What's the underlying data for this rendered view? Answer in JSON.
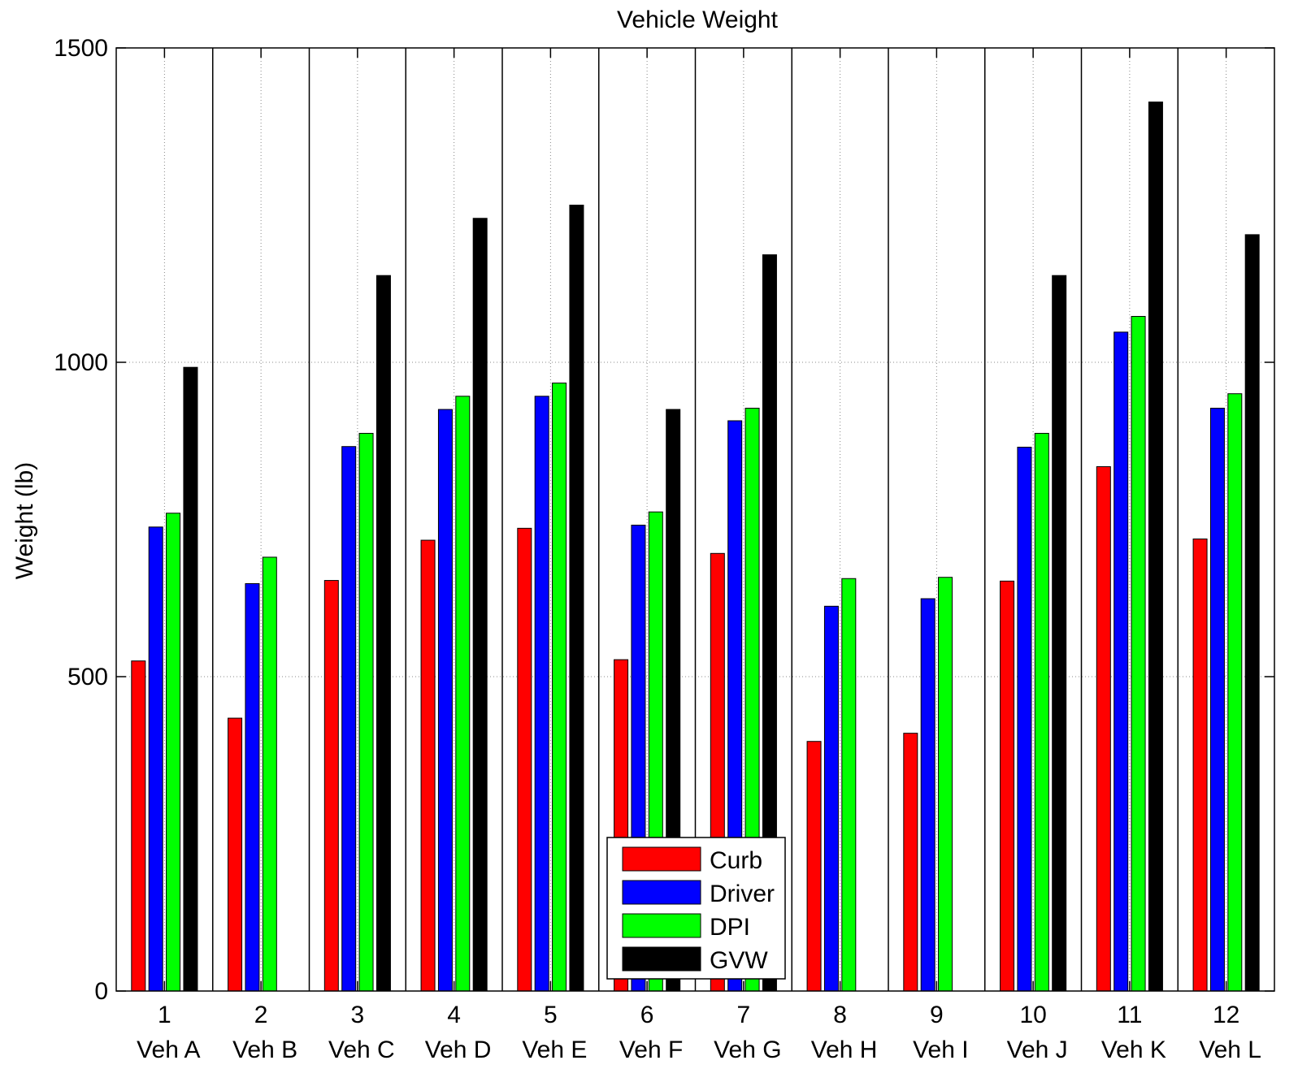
{
  "chart_data": {
    "type": "bar",
    "title": "Vehicle Weight",
    "xlabel": "",
    "ylabel": "Weight (lb)",
    "ylim": [
      0,
      1500
    ],
    "yticks": [
      0,
      500,
      1000,
      1500
    ],
    "grid": true,
    "legend_position": "bottom-center",
    "categories": [
      "1",
      "2",
      "3",
      "4",
      "5",
      "6",
      "7",
      "8",
      "9",
      "10",
      "11",
      "12"
    ],
    "category_sublabels": [
      "Veh A",
      "Veh B",
      "Veh C",
      "Veh D",
      "Veh E",
      "Veh F",
      "Veh G",
      "Veh H",
      "Veh I",
      "Veh J",
      "Veh K",
      "Veh L"
    ],
    "series": [
      {
        "name": "Curb",
        "color": "#ff0000",
        "values": [
          525,
          434,
          653,
          717,
          736,
          527,
          696,
          397,
          410,
          652,
          834,
          719
        ]
      },
      {
        "name": "Driver",
        "color": "#0000ff",
        "values": [
          738,
          648,
          866,
          925,
          946,
          741,
          907,
          612,
          624,
          865,
          1048,
          927
        ]
      },
      {
        "name": "DPI",
        "color": "#00ff00",
        "values": [
          760,
          690,
          887,
          946,
          967,
          762,
          927,
          656,
          658,
          887,
          1073,
          950
        ]
      },
      {
        "name": "GVW",
        "color": "#000000",
        "values": [
          992,
          0,
          1138,
          1229,
          1250,
          925,
          1171,
          0,
          0,
          1138,
          1414,
          1203
        ]
      }
    ]
  }
}
